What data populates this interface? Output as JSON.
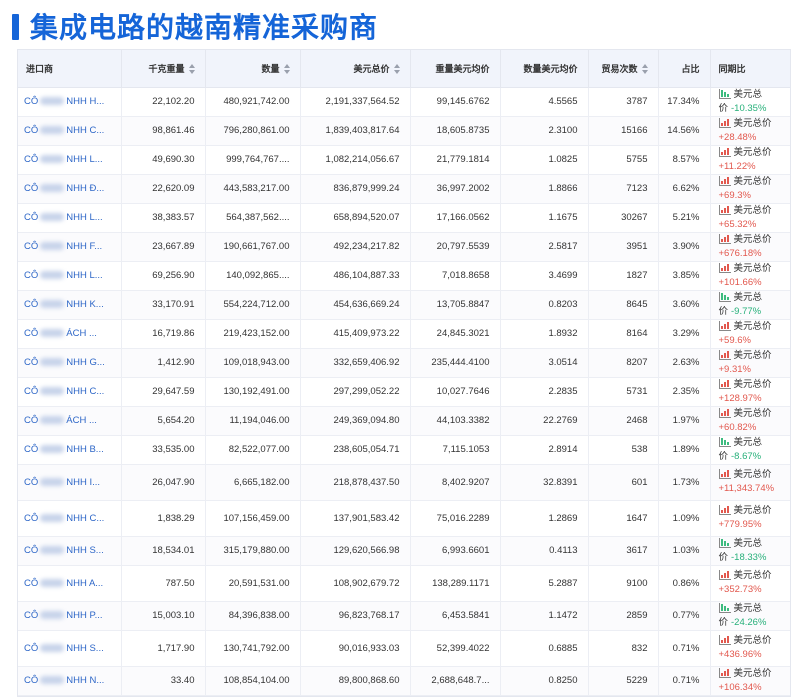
{
  "page": {
    "title": "集成电路的越南精准采购商"
  },
  "table": {
    "columns": [
      {
        "label": "进口商",
        "sortable": false
      },
      {
        "label": "千克重量",
        "sortable": true
      },
      {
        "label": "数量",
        "sortable": true
      },
      {
        "label": "美元总价",
        "sortable": true
      },
      {
        "label": "重量美元均价",
        "sortable": false
      },
      {
        "label": "数量美元均价",
        "sortable": false
      },
      {
        "label": "贸易次数",
        "sortable": true
      },
      {
        "label": "占比",
        "sortable": false
      },
      {
        "label": "同期比",
        "sortable": false
      }
    ],
    "rows": [
      {
        "importer_prefix": "CÔ",
        "importer_suffix": "NHH H...",
        "kg": "22,102.20",
        "qty": "480,921,742.00",
        "usd": "2,191,337,564.52",
        "usd_per_kg": "99,145.6762",
        "usd_per_qty": "4.5565",
        "trades": "3787",
        "share": "17.34%",
        "growth_label": "美元总价",
        "growth": "-10.35%",
        "direction": "down",
        "wrap": false
      },
      {
        "importer_prefix": "CÔ",
        "importer_suffix": "NHH C...",
        "kg": "98,861.46",
        "qty": "796,280,861.00",
        "usd": "1,839,403,817.64",
        "usd_per_kg": "18,605.8735",
        "usd_per_qty": "2.3100",
        "trades": "15166",
        "share": "14.56%",
        "growth_label": "美元总价",
        "growth": "+28.48%",
        "direction": "up",
        "wrap": false
      },
      {
        "importer_prefix": "CÔ",
        "importer_suffix": "NHH L...",
        "kg": "49,690.30",
        "qty": "999,764,767....",
        "usd": "1,082,214,056.67",
        "usd_per_kg": "21,779.1814",
        "usd_per_qty": "1.0825",
        "trades": "5755",
        "share": "8.57%",
        "growth_label": "美元总价",
        "growth": "+11.22%",
        "direction": "up",
        "wrap": false
      },
      {
        "importer_prefix": "CÔ",
        "importer_suffix": "NHH Đ...",
        "kg": "22,620.09",
        "qty": "443,583,217.00",
        "usd": "836,879,999.24",
        "usd_per_kg": "36,997.2002",
        "usd_per_qty": "1.8866",
        "trades": "7123",
        "share": "6.62%",
        "growth_label": "美元总价",
        "growth": "+69.3%",
        "direction": "up",
        "wrap": false
      },
      {
        "importer_prefix": "CÔ",
        "importer_suffix": "NHH L...",
        "kg": "38,383.57",
        "qty": "564,387,562....",
        "usd": "658,894,520.07",
        "usd_per_kg": "17,166.0562",
        "usd_per_qty": "1.1675",
        "trades": "30267",
        "share": "5.21%",
        "growth_label": "美元总价",
        "growth": "+65.32%",
        "direction": "up",
        "wrap": false
      },
      {
        "importer_prefix": "CÔ",
        "importer_suffix": "NHH F...",
        "kg": "23,667.89",
        "qty": "190,661,767.00",
        "usd": "492,234,217.82",
        "usd_per_kg": "20,797.5539",
        "usd_per_qty": "2.5817",
        "trades": "3951",
        "share": "3.90%",
        "growth_label": "美元总价",
        "growth": "+676.18%",
        "direction": "up",
        "wrap": false
      },
      {
        "importer_prefix": "CÔ",
        "importer_suffix": "NHH L...",
        "kg": "69,256.90",
        "qty": "140,092,865....",
        "usd": "486,104,887.33",
        "usd_per_kg": "7,018.8658",
        "usd_per_qty": "3.4699",
        "trades": "1827",
        "share": "3.85%",
        "growth_label": "美元总价",
        "growth": "+101.66%",
        "direction": "up",
        "wrap": false
      },
      {
        "importer_prefix": "CÔ",
        "importer_suffix": "NHH K...",
        "kg": "33,170.91",
        "qty": "554,224,712.00",
        "usd": "454,636,669.24",
        "usd_per_kg": "13,705.8847",
        "usd_per_qty": "0.8203",
        "trades": "8645",
        "share": "3.60%",
        "growth_label": "美元总价",
        "growth": "-9.77%",
        "direction": "down",
        "wrap": false
      },
      {
        "importer_prefix": "CÔ",
        "importer_suffix": "ÁCH ...",
        "kg": "16,719.86",
        "qty": "219,423,152.00",
        "usd": "415,409,973.22",
        "usd_per_kg": "24,845.3021",
        "usd_per_qty": "1.8932",
        "trades": "8164",
        "share": "3.29%",
        "growth_label": "美元总价",
        "growth": "+59.6%",
        "direction": "up",
        "wrap": false
      },
      {
        "importer_prefix": "CÔ",
        "importer_suffix": "NHH G...",
        "kg": "1,412.90",
        "qty": "109,018,943.00",
        "usd": "332,659,406.92",
        "usd_per_kg": "235,444.4100",
        "usd_per_qty": "3.0514",
        "trades": "8207",
        "share": "2.63%",
        "growth_label": "美元总价",
        "growth": "+9.31%",
        "direction": "up",
        "wrap": false
      },
      {
        "importer_prefix": "CÔ",
        "importer_suffix": "NHH C...",
        "kg": "29,647.59",
        "qty": "130,192,491.00",
        "usd": "297,299,052.22",
        "usd_per_kg": "10,027.7646",
        "usd_per_qty": "2.2835",
        "trades": "5731",
        "share": "2.35%",
        "growth_label": "美元总价",
        "growth": "+128.97%",
        "direction": "up",
        "wrap": false
      },
      {
        "importer_prefix": "CÔ",
        "importer_suffix": "ÁCH ...",
        "kg": "5,654.20",
        "qty": "11,194,046.00",
        "usd": "249,369,094.80",
        "usd_per_kg": "44,103.3382",
        "usd_per_qty": "22.2769",
        "trades": "2468",
        "share": "1.97%",
        "growth_label": "美元总价",
        "growth": "+60.82%",
        "direction": "up",
        "wrap": false
      },
      {
        "importer_prefix": "CÔ",
        "importer_suffix": "NHH B...",
        "kg": "33,535.00",
        "qty": "82,522,077.00",
        "usd": "238,605,054.71",
        "usd_per_kg": "7,115.1053",
        "usd_per_qty": "2.8914",
        "trades": "538",
        "share": "1.89%",
        "growth_label": "美元总价",
        "growth": "-8.67%",
        "direction": "down",
        "wrap": false
      },
      {
        "importer_prefix": "CÔ",
        "importer_suffix": "NHH I...",
        "kg": "26,047.90",
        "qty": "6,665,182.00",
        "usd": "218,878,437.50",
        "usd_per_kg": "8,402.9207",
        "usd_per_qty": "32.8391",
        "trades": "601",
        "share": "1.73%",
        "growth_label": "美元总价",
        "growth": "+11,343.74%",
        "direction": "up",
        "wrap": true
      },
      {
        "importer_prefix": "CÔ",
        "importer_suffix": "NHH C...",
        "kg": "1,838.29",
        "qty": "107,156,459.00",
        "usd": "137,901,583.42",
        "usd_per_kg": "75,016.2289",
        "usd_per_qty": "1.2869",
        "trades": "1647",
        "share": "1.09%",
        "growth_label": "美元总价",
        "growth": "+779.95%",
        "direction": "up",
        "wrap": true
      },
      {
        "importer_prefix": "CÔ",
        "importer_suffix": "NHH S...",
        "kg": "18,534.01",
        "qty": "315,179,880.00",
        "usd": "129,620,566.98",
        "usd_per_kg": "6,993.6601",
        "usd_per_qty": "0.4113",
        "trades": "3617",
        "share": "1.03%",
        "growth_label": "美元总价",
        "growth": "-18.33%",
        "direction": "down",
        "wrap": false
      },
      {
        "importer_prefix": "CÔ",
        "importer_suffix": "NHH A...",
        "kg": "787.50",
        "qty": "20,591,531.00",
        "usd": "108,902,679.72",
        "usd_per_kg": "138,289.1171",
        "usd_per_qty": "5.2887",
        "trades": "9100",
        "share": "0.86%",
        "growth_label": "美元总价",
        "growth": "+352.73%",
        "direction": "up",
        "wrap": true
      },
      {
        "importer_prefix": "CÔ",
        "importer_suffix": "NHH P...",
        "kg": "15,003.10",
        "qty": "84,396,838.00",
        "usd": "96,823,768.17",
        "usd_per_kg": "6,453.5841",
        "usd_per_qty": "1.1472",
        "trades": "2859",
        "share": "0.77%",
        "growth_label": "美元总价",
        "growth": "-24.26%",
        "direction": "down",
        "wrap": false
      },
      {
        "importer_prefix": "CÔ",
        "importer_suffix": "NHH S...",
        "kg": "1,717.90",
        "qty": "130,741,792.00",
        "usd": "90,016,933.03",
        "usd_per_kg": "52,399.4022",
        "usd_per_qty": "0.6885",
        "trades": "832",
        "share": "0.71%",
        "growth_label": "美元总价",
        "growth": "+436.96%",
        "direction": "up",
        "wrap": true
      },
      {
        "importer_prefix": "CÔ",
        "importer_suffix": "NHH N...",
        "kg": "33.40",
        "qty": "108,854,104.00",
        "usd": "89,800,868.60",
        "usd_per_kg": "2,688,648.7...",
        "usd_per_qty": "0.8250",
        "trades": "5229",
        "share": "0.71%",
        "growth_label": "美元总价",
        "growth": "+106.34%",
        "direction": "up",
        "wrap": false
      }
    ]
  },
  "colors": {
    "accent": "#1565d8",
    "up": "#e2584e",
    "down": "#27b07a",
    "link": "#2d66c7",
    "header_bg": "#f1f4fb"
  }
}
